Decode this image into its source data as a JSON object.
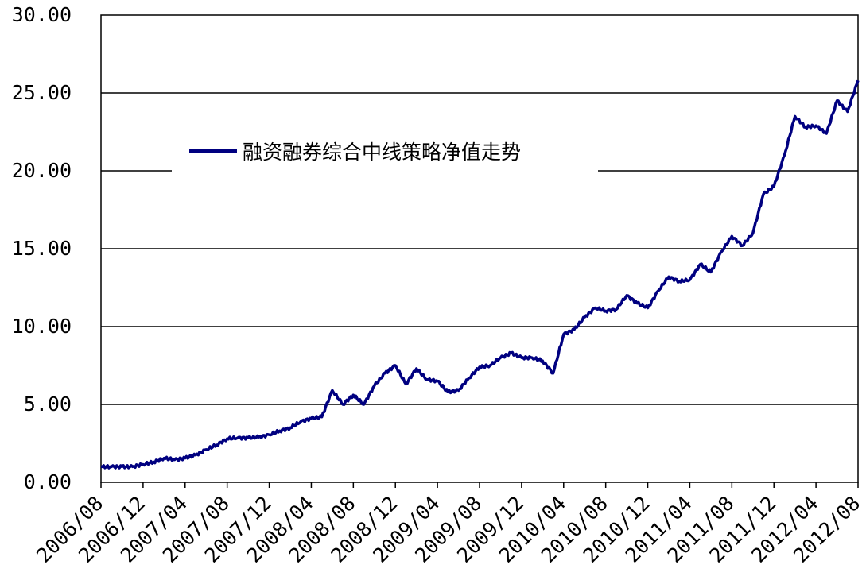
{
  "chart_data": {
    "type": "line",
    "title": "",
    "xlabel": "",
    "ylabel": "",
    "ylim": [
      0,
      30
    ],
    "yticks": [
      "0.00",
      "5.00",
      "10.00",
      "15.00",
      "20.00",
      "25.00",
      "30.00"
    ],
    "xticks": [
      "2006/08",
      "2006/12",
      "2007/04",
      "2007/08",
      "2007/12",
      "2008/04",
      "2008/08",
      "2008/12",
      "2009/04",
      "2009/08",
      "2009/12",
      "2010/04",
      "2010/08",
      "2010/12",
      "2011/04",
      "2011/08",
      "2011/12",
      "2012/04",
      "2012/08"
    ],
    "grid": "horizontal",
    "legend_position": "top-left",
    "series": [
      {
        "name": "融资融券综合中线策略净值走势",
        "color": "#000080",
        "points": [
          [
            "2006/08",
            1.0
          ],
          [
            "2006/09",
            1.0
          ],
          [
            "2006/10",
            1.0
          ],
          [
            "2006/11",
            1.0
          ],
          [
            "2006/12",
            1.15
          ],
          [
            "2007/01",
            1.3
          ],
          [
            "2007/02",
            1.55
          ],
          [
            "2007/03",
            1.45
          ],
          [
            "2007/04",
            1.55
          ],
          [
            "2007/05",
            1.75
          ],
          [
            "2007/06",
            2.1
          ],
          [
            "2007/07",
            2.4
          ],
          [
            "2007/08",
            2.8
          ],
          [
            "2007/09",
            2.85
          ],
          [
            "2007/10",
            2.85
          ],
          [
            "2007/11",
            2.9
          ],
          [
            "2007/12",
            3.05
          ],
          [
            "2008/01",
            3.3
          ],
          [
            "2008/02",
            3.5
          ],
          [
            "2008/03",
            3.9
          ],
          [
            "2008/04",
            4.1
          ],
          [
            "2008/05",
            4.2
          ],
          [
            "2008/06",
            5.9
          ],
          [
            "2008/07",
            5.0
          ],
          [
            "2008/08",
            5.6
          ],
          [
            "2008/09",
            5.0
          ],
          [
            "2008/10",
            6.2
          ],
          [
            "2008/11",
            7.0
          ],
          [
            "2008/12",
            7.5
          ],
          [
            "2009/01",
            6.3
          ],
          [
            "2009/02",
            7.3
          ],
          [
            "2009/03",
            6.6
          ],
          [
            "2009/04",
            6.5
          ],
          [
            "2009/05",
            5.8
          ],
          [
            "2009/06",
            5.9
          ],
          [
            "2009/07",
            6.7
          ],
          [
            "2009/08",
            7.4
          ],
          [
            "2009/09",
            7.5
          ],
          [
            "2009/10",
            8.0
          ],
          [
            "2009/11",
            8.3
          ],
          [
            "2009/12",
            8.0
          ],
          [
            "2010/01",
            8.0
          ],
          [
            "2010/02",
            7.8
          ],
          [
            "2010/03",
            7.0
          ],
          [
            "2010/04",
            9.5
          ],
          [
            "2010/05",
            9.8
          ],
          [
            "2010/06",
            10.6
          ],
          [
            "2010/07",
            11.2
          ],
          [
            "2010/08",
            11.0
          ],
          [
            "2010/09",
            11.1
          ],
          [
            "2010/10",
            12.0
          ],
          [
            "2010/11",
            11.5
          ],
          [
            "2010/12",
            11.2
          ],
          [
            "2011/01",
            12.3
          ],
          [
            "2011/02",
            13.2
          ],
          [
            "2011/03",
            12.9
          ],
          [
            "2011/04",
            13.0
          ],
          [
            "2011/05",
            14.0
          ],
          [
            "2011/06",
            13.5
          ],
          [
            "2011/07",
            14.8
          ],
          [
            "2011/08",
            15.8
          ],
          [
            "2011/09",
            15.2
          ],
          [
            "2011/10",
            16.0
          ],
          [
            "2011/11",
            18.5
          ],
          [
            "2011/12",
            19.0
          ],
          [
            "2012/01",
            21.0
          ],
          [
            "2012/02",
            23.5
          ],
          [
            "2012/03",
            22.8
          ],
          [
            "2012/04",
            22.9
          ],
          [
            "2012/05",
            22.4
          ],
          [
            "2012/06",
            24.5
          ],
          [
            "2012/07",
            23.8
          ],
          [
            "2012/08",
            25.8
          ]
        ]
      }
    ]
  }
}
